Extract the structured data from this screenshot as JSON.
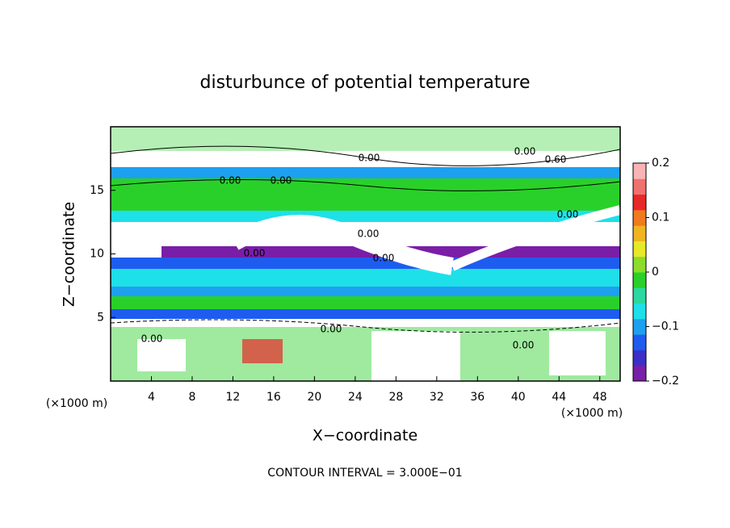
{
  "chart_data": {
    "type": "field",
    "title": "disturbunce of potential temperature",
    "x_label": "X−coordinate",
    "y_label": "Z−coordinate",
    "x_unit_left": "(×1000 m)",
    "x_unit_right": "(×1000 m)",
    "footer": "CONTOUR INTERVAL = 3.000E−01",
    "xlim": [
      0,
      50
    ],
    "xticks": [
      4,
      8,
      12,
      16,
      20,
      24,
      28,
      32,
      36,
      40,
      44,
      48
    ],
    "ylim": [
      0,
      20
    ],
    "yticks": [
      5,
      10,
      15
    ],
    "colorbar_lim": [
      -0.2,
      0.2
    ],
    "colorbar_ticks": [
      {
        "value": -0.2,
        "label": "−0.2"
      },
      {
        "value": -0.1,
        "label": "−0.1"
      },
      0,
      0.1,
      0.2
    ],
    "colormap": [
      "#7a1ea8",
      "#3b2fc8",
      "#1e5cf0",
      "#1ea0f0",
      "#1ee0e8",
      "#2ad9a0",
      "#2ad02a",
      "#8cdc2a",
      "#e8e82a",
      "#f0b41e",
      "#f07a1e",
      "#e82828",
      "#f07070",
      "#f8b4b4"
    ],
    "contour_labels": [
      "0.00",
      "0.00",
      "0.60",
      "0.00",
      "0.00",
      "0.00",
      "0.00",
      "0.00",
      "0.00",
      "0.00",
      "0.00",
      "0.00"
    ]
  }
}
